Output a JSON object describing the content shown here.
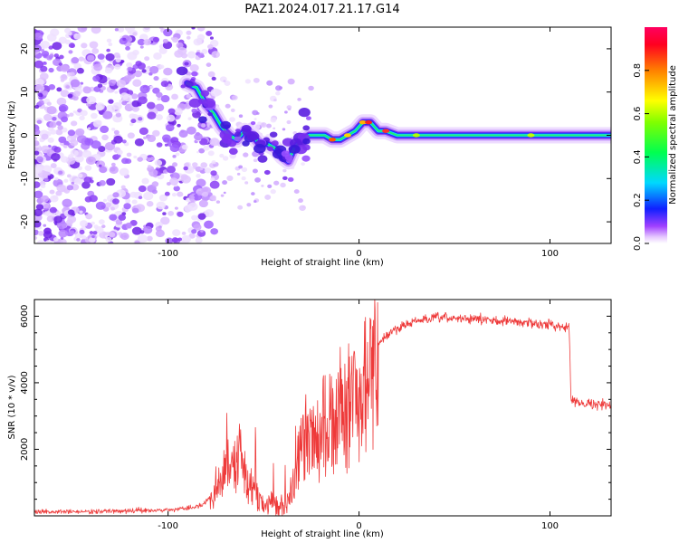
{
  "title": "PAZ1.2024.017.21.17.G14",
  "charts": {
    "spectrogram": {
      "type": "heatmap",
      "xlabel": "Height of straight line (km)",
      "ylabel": "Frequency (Hz)",
      "xlim": [
        -170,
        132
      ],
      "ylim": [
        -25,
        25
      ],
      "xticks": [
        -100,
        0,
        100
      ],
      "yticks": [
        -20,
        -10,
        0,
        10,
        20
      ],
      "ridge": [
        [
          -90,
          12
        ],
        [
          -85,
          11
        ],
        [
          -80,
          7
        ],
        [
          -76,
          5
        ],
        [
          -72,
          2
        ],
        [
          -68,
          0
        ],
        [
          -64,
          -1
        ],
        [
          -60,
          1
        ],
        [
          -56,
          0
        ],
        [
          -52,
          -2
        ],
        [
          -48,
          -2
        ],
        [
          -44,
          -3
        ],
        [
          -40,
          -5
        ],
        [
          -37,
          -6
        ],
        [
          -34,
          -3
        ],
        [
          -30,
          -1
        ],
        [
          -26,
          0
        ],
        [
          -22,
          0
        ],
        [
          -18,
          0
        ],
        [
          -14,
          -1
        ],
        [
          -10,
          -1
        ],
        [
          -6,
          0
        ],
        [
          -2,
          1
        ],
        [
          2,
          3
        ],
        [
          6,
          3
        ],
        [
          10,
          1
        ],
        [
          14,
          1
        ],
        [
          20,
          0
        ],
        [
          30,
          0
        ],
        [
          50,
          0
        ],
        [
          70,
          0
        ],
        [
          90,
          0
        ],
        [
          110,
          0
        ],
        [
          132,
          0
        ]
      ],
      "colorbar": {
        "label": "Normalized spectral amplitude",
        "ticks": [
          "0.0",
          "0.2",
          "0.4",
          "0.6",
          "0.8"
        ],
        "range": [
          0,
          1
        ],
        "colormap": "gist_rainbow_r"
      },
      "grid": false
    },
    "snr": {
      "type": "line",
      "xlabel": "Height of straight line (km)",
      "ylabel": "SNR (10 * v/v)",
      "xlim": [
        -170,
        132
      ],
      "ylim": [
        0,
        6500
      ],
      "xticks": [
        -100,
        0,
        100
      ],
      "yticks": [
        2000,
        4000,
        6000
      ],
      "color": "#ee3a3a",
      "envelope": [
        [
          -170,
          120
        ],
        [
          -140,
          130
        ],
        [
          -120,
          150
        ],
        [
          -100,
          180
        ],
        [
          -90,
          230
        ],
        [
          -82,
          330
        ],
        [
          -77,
          600
        ],
        [
          -73,
          1300
        ],
        [
          -69,
          1800
        ],
        [
          -65,
          2100
        ],
        [
          -62,
          2000
        ],
        [
          -58,
          1100
        ],
        [
          -54,
          700
        ],
        [
          -50,
          500
        ],
        [
          -45,
          400
        ],
        [
          -40,
          350
        ],
        [
          -36,
          700
        ],
        [
          -33,
          1600
        ],
        [
          -30,
          2400
        ],
        [
          -27,
          2900
        ],
        [
          -24,
          2700
        ],
        [
          -21,
          2900
        ],
        [
          -17,
          3300
        ],
        [
          -13,
          3600
        ],
        [
          -9,
          3900
        ],
        [
          -5,
          4100
        ],
        [
          -1,
          4300
        ],
        [
          3,
          4700
        ],
        [
          8,
          5000
        ],
        [
          14,
          5400
        ],
        [
          22,
          5700
        ],
        [
          30,
          5850
        ],
        [
          40,
          5950
        ],
        [
          55,
          5930
        ],
        [
          70,
          5880
        ],
        [
          85,
          5820
        ],
        [
          100,
          5740
        ],
        [
          110,
          5680
        ],
        [
          111,
          3450
        ],
        [
          115,
          3420
        ],
        [
          125,
          3350
        ],
        [
          132,
          3320
        ]
      ],
      "grid": false
    }
  }
}
